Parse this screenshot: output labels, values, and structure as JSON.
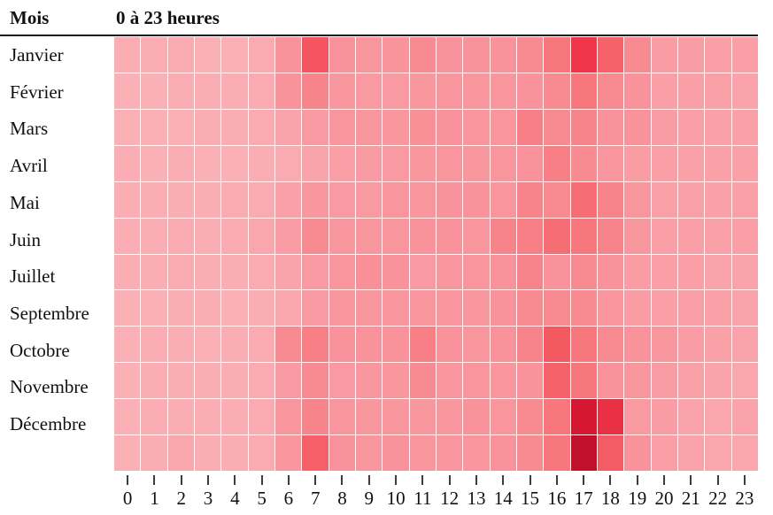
{
  "header": {
    "mois_label": "Mois",
    "hours_label": "0 à 23 heures"
  },
  "chart_data": {
    "type": "heatmap",
    "title": "0 à 23 heures",
    "ylabel": "Mois",
    "xlabel": "heures",
    "x_labels": [
      "0",
      "1",
      "2",
      "3",
      "4",
      "5",
      "6",
      "7",
      "8",
      "9",
      "10",
      "11",
      "12",
      "13",
      "14",
      "15",
      "16",
      "17",
      "18",
      "19",
      "20",
      "21",
      "22",
      "23"
    ],
    "row_labels": [
      "Janvier",
      "Février",
      "Mars",
      "Avril",
      "Mai",
      "Juin",
      "Juillet",
      "Septembre",
      "Octobre",
      "Novembre",
      "Décembre",
      ""
    ],
    "value_scale": "relative intensity 0-100 (light pink = low, dark red = high)",
    "values": [
      [
        20,
        20,
        22,
        18,
        18,
        22,
        45,
        66,
        45,
        42,
        43,
        48,
        45,
        45,
        45,
        48,
        55,
        76,
        62,
        48,
        35,
        35,
        32,
        32
      ],
      [
        18,
        18,
        20,
        20,
        20,
        22,
        44,
        50,
        40,
        38,
        38,
        40,
        42,
        42,
        40,
        45,
        48,
        55,
        48,
        45,
        32,
        32,
        30,
        28
      ],
      [
        18,
        18,
        18,
        20,
        20,
        22,
        28,
        38,
        42,
        42,
        42,
        46,
        45,
        42,
        42,
        52,
        48,
        50,
        45,
        45,
        35,
        32,
        30,
        30
      ],
      [
        20,
        18,
        20,
        18,
        18,
        20,
        22,
        28,
        32,
        36,
        38,
        40,
        42,
        40,
        42,
        45,
        52,
        48,
        42,
        35,
        32,
        30,
        30,
        30
      ],
      [
        20,
        20,
        20,
        20,
        22,
        22,
        30,
        40,
        38,
        38,
        42,
        42,
        45,
        45,
        42,
        50,
        48,
        58,
        50,
        42,
        30,
        30,
        30,
        30
      ],
      [
        20,
        20,
        22,
        20,
        22,
        25,
        35,
        48,
        40,
        40,
        42,
        45,
        45,
        42,
        50,
        52,
        58,
        55,
        50,
        40,
        32,
        32,
        30,
        32
      ],
      [
        20,
        20,
        22,
        20,
        20,
        22,
        28,
        38,
        42,
        46,
        45,
        38,
        40,
        42,
        45,
        50,
        45,
        48,
        45,
        35,
        32,
        32,
        28,
        28
      ],
      [
        18,
        18,
        20,
        20,
        18,
        20,
        25,
        38,
        42,
        42,
        42,
        42,
        42,
        40,
        45,
        48,
        48,
        48,
        42,
        35,
        32,
        33,
        30,
        28
      ],
      [
        18,
        20,
        20,
        18,
        20,
        22,
        48,
        52,
        45,
        45,
        45,
        52,
        45,
        42,
        45,
        50,
        65,
        55,
        48,
        45,
        40,
        35,
        30,
        28
      ],
      [
        18,
        20,
        20,
        20,
        20,
        22,
        38,
        48,
        38,
        40,
        40,
        48,
        40,
        42,
        40,
        45,
        62,
        55,
        45,
        42,
        35,
        30,
        28,
        25
      ],
      [
        18,
        20,
        20,
        20,
        20,
        22,
        42,
        50,
        42,
        40,
        40,
        40,
        40,
        45,
        42,
        48,
        55,
        87,
        78,
        38,
        35,
        28,
        25,
        28
      ],
      [
        18,
        20,
        25,
        20,
        20,
        22,
        40,
        63,
        44,
        42,
        44,
        42,
        42,
        42,
        45,
        48,
        55,
        93,
        64,
        45,
        32,
        28,
        25,
        25
      ]
    ],
    "color_stops": [
      [
        0,
        "#FDC8CE"
      ],
      [
        25,
        "#FAA6AD"
      ],
      [
        45,
        "#F9929A"
      ],
      [
        60,
        "#F6696E"
      ],
      [
        75,
        "#F0384B"
      ],
      [
        88,
        "#D31430"
      ],
      [
        100,
        "#A80B20"
      ]
    ],
    "layout": {
      "grid": "on",
      "legend": "none",
      "unlabeled_bottom_row": true
    }
  }
}
